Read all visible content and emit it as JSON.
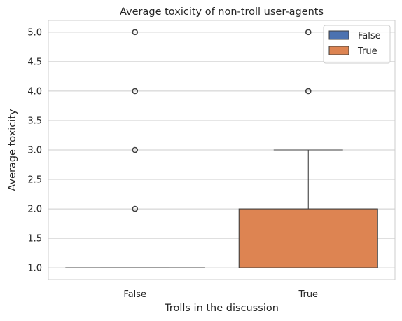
{
  "chart_data": {
    "type": "box",
    "title": "Average toxicity of non-troll user-agents",
    "xlabel": "Trolls in the discussion",
    "ylabel": "Average toxicity",
    "categories": [
      "False",
      "True"
    ],
    "ylim": [
      0.8,
      5.2
    ],
    "yticks": [
      "1.0",
      "1.5",
      "2.0",
      "2.5",
      "3.0",
      "3.5",
      "4.0",
      "4.5",
      "5.0"
    ],
    "grid": true,
    "legend_position": "top-right",
    "series": [
      {
        "name": "False",
        "color": "#4c72b0",
        "box": {
          "min": 1.0,
          "q1": 1.0,
          "median": 1.0,
          "q3": 1.0,
          "max": 1.0
        },
        "outliers": [
          2.0,
          3.0,
          4.0,
          5.0
        ]
      },
      {
        "name": "True",
        "color": "#dd8452",
        "box": {
          "min": 1.0,
          "q1": 1.0,
          "median": 1.0,
          "q3": 2.0,
          "max": 3.0
        },
        "outliers": [
          4.0,
          5.0
        ]
      }
    ]
  }
}
